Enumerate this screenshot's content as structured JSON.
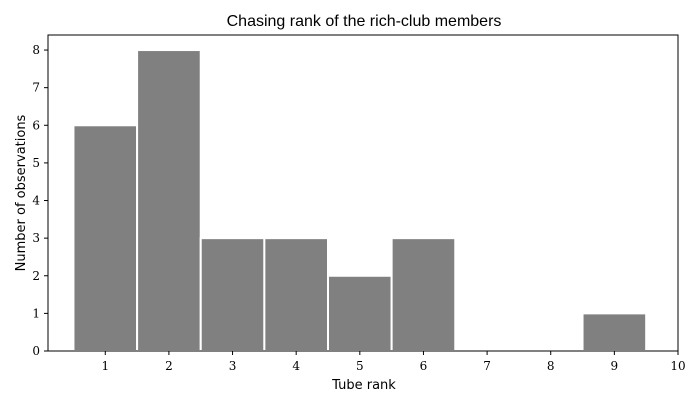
{
  "chart_data": {
    "type": "bar",
    "title": "Chasing rank of the rich-club members",
    "xlabel": "Tube rank",
    "ylabel": "Number of observations",
    "categories": [
      1,
      2,
      3,
      4,
      5,
      6,
      7,
      8,
      9
    ],
    "values": [
      6,
      8,
      3,
      3,
      2,
      3,
      0,
      0,
      1
    ],
    "xlim": [
      0.1,
      10
    ],
    "ylim": [
      0,
      8.4
    ],
    "xticks": [
      "1",
      "2",
      "3",
      "4",
      "5",
      "6",
      "7",
      "8",
      "9",
      "10"
    ],
    "yticks": [
      "0",
      "1",
      "2",
      "3",
      "4",
      "5",
      "6",
      "7",
      "8"
    ],
    "grid": false,
    "legend": "none",
    "bar_color": "#808080",
    "bar_edge_color": "#ffffff"
  }
}
